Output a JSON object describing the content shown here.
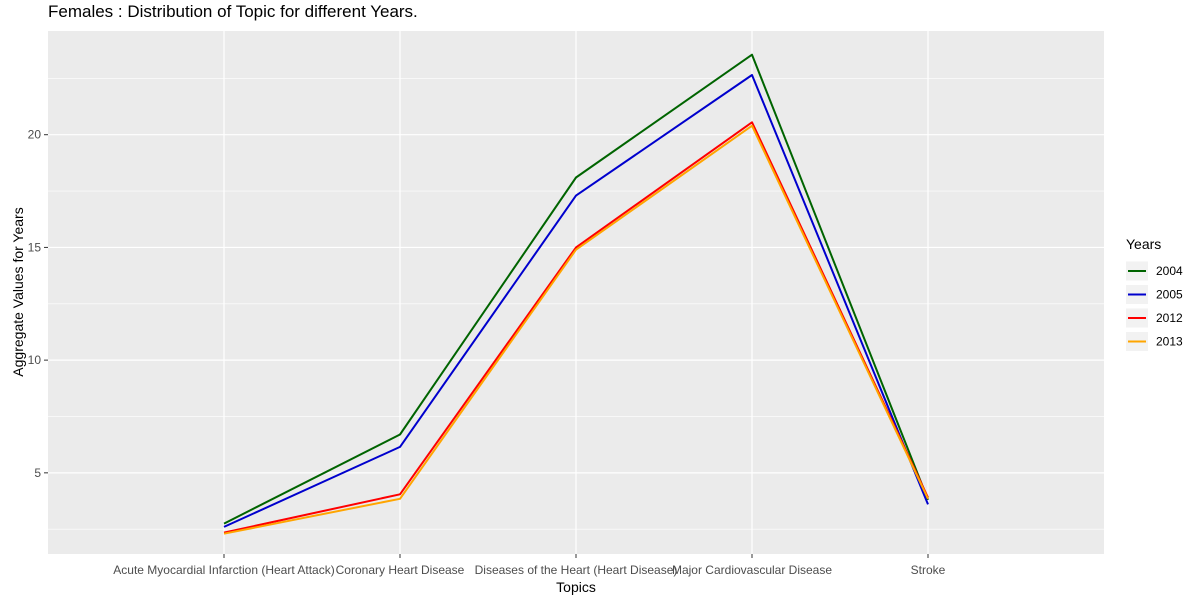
{
  "chart_data": {
    "type": "line",
    "title": "Females : Distribution of Topic for different Years.",
    "xlabel": "Topics",
    "ylabel": "Aggregate Values for Years",
    "categories": [
      "Acute Myocardial Infarction (Heart Attack)",
      "Coronary Heart Disease",
      "Diseases of the Heart (Heart Disease)",
      "Major Cardiovascular Disease",
      "Stroke"
    ],
    "ylim": [
      1.4,
      24.6
    ],
    "yticks": [
      5,
      10,
      15,
      20
    ],
    "grid": true,
    "legend": {
      "title": "Years",
      "position": "right"
    },
    "series": [
      {
        "name": "2004",
        "color": "#006400",
        "values": [
          2.75,
          6.7,
          18.1,
          23.55,
          3.8
        ]
      },
      {
        "name": "2005",
        "color": "#0000CD",
        "values": [
          2.6,
          6.15,
          17.3,
          22.65,
          3.6
        ]
      },
      {
        "name": "2012",
        "color": "#FF0000",
        "values": [
          2.35,
          4.05,
          15.0,
          20.55,
          3.9
        ]
      },
      {
        "name": "2013",
        "color": "#FFA500",
        "values": [
          2.3,
          3.85,
          14.9,
          20.4,
          3.85
        ]
      }
    ]
  }
}
